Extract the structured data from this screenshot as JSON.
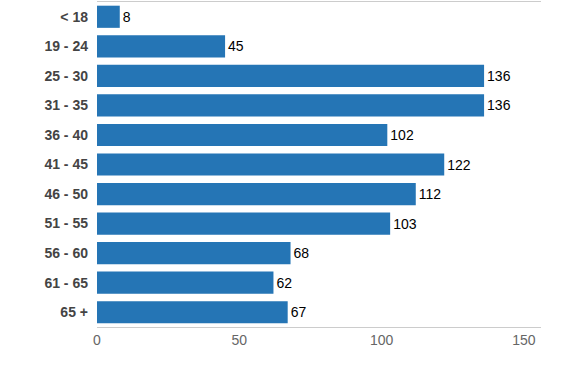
{
  "chart_data": {
    "type": "bar",
    "orientation": "horizontal",
    "categories": [
      "< 18",
      "19 - 24",
      "25 - 30",
      "31 - 35",
      "36 - 40",
      "41 - 45",
      "46 - 50",
      "51 - 55",
      "56 - 60",
      "61 - 65",
      "65 +"
    ],
    "values": [
      8,
      45,
      136,
      136,
      102,
      122,
      112,
      103,
      68,
      62,
      67
    ],
    "color": "#2575b5",
    "xlim": [
      0,
      156
    ],
    "xticks": [
      0,
      50,
      100,
      150
    ],
    "grid": false,
    "data_labels": true
  }
}
